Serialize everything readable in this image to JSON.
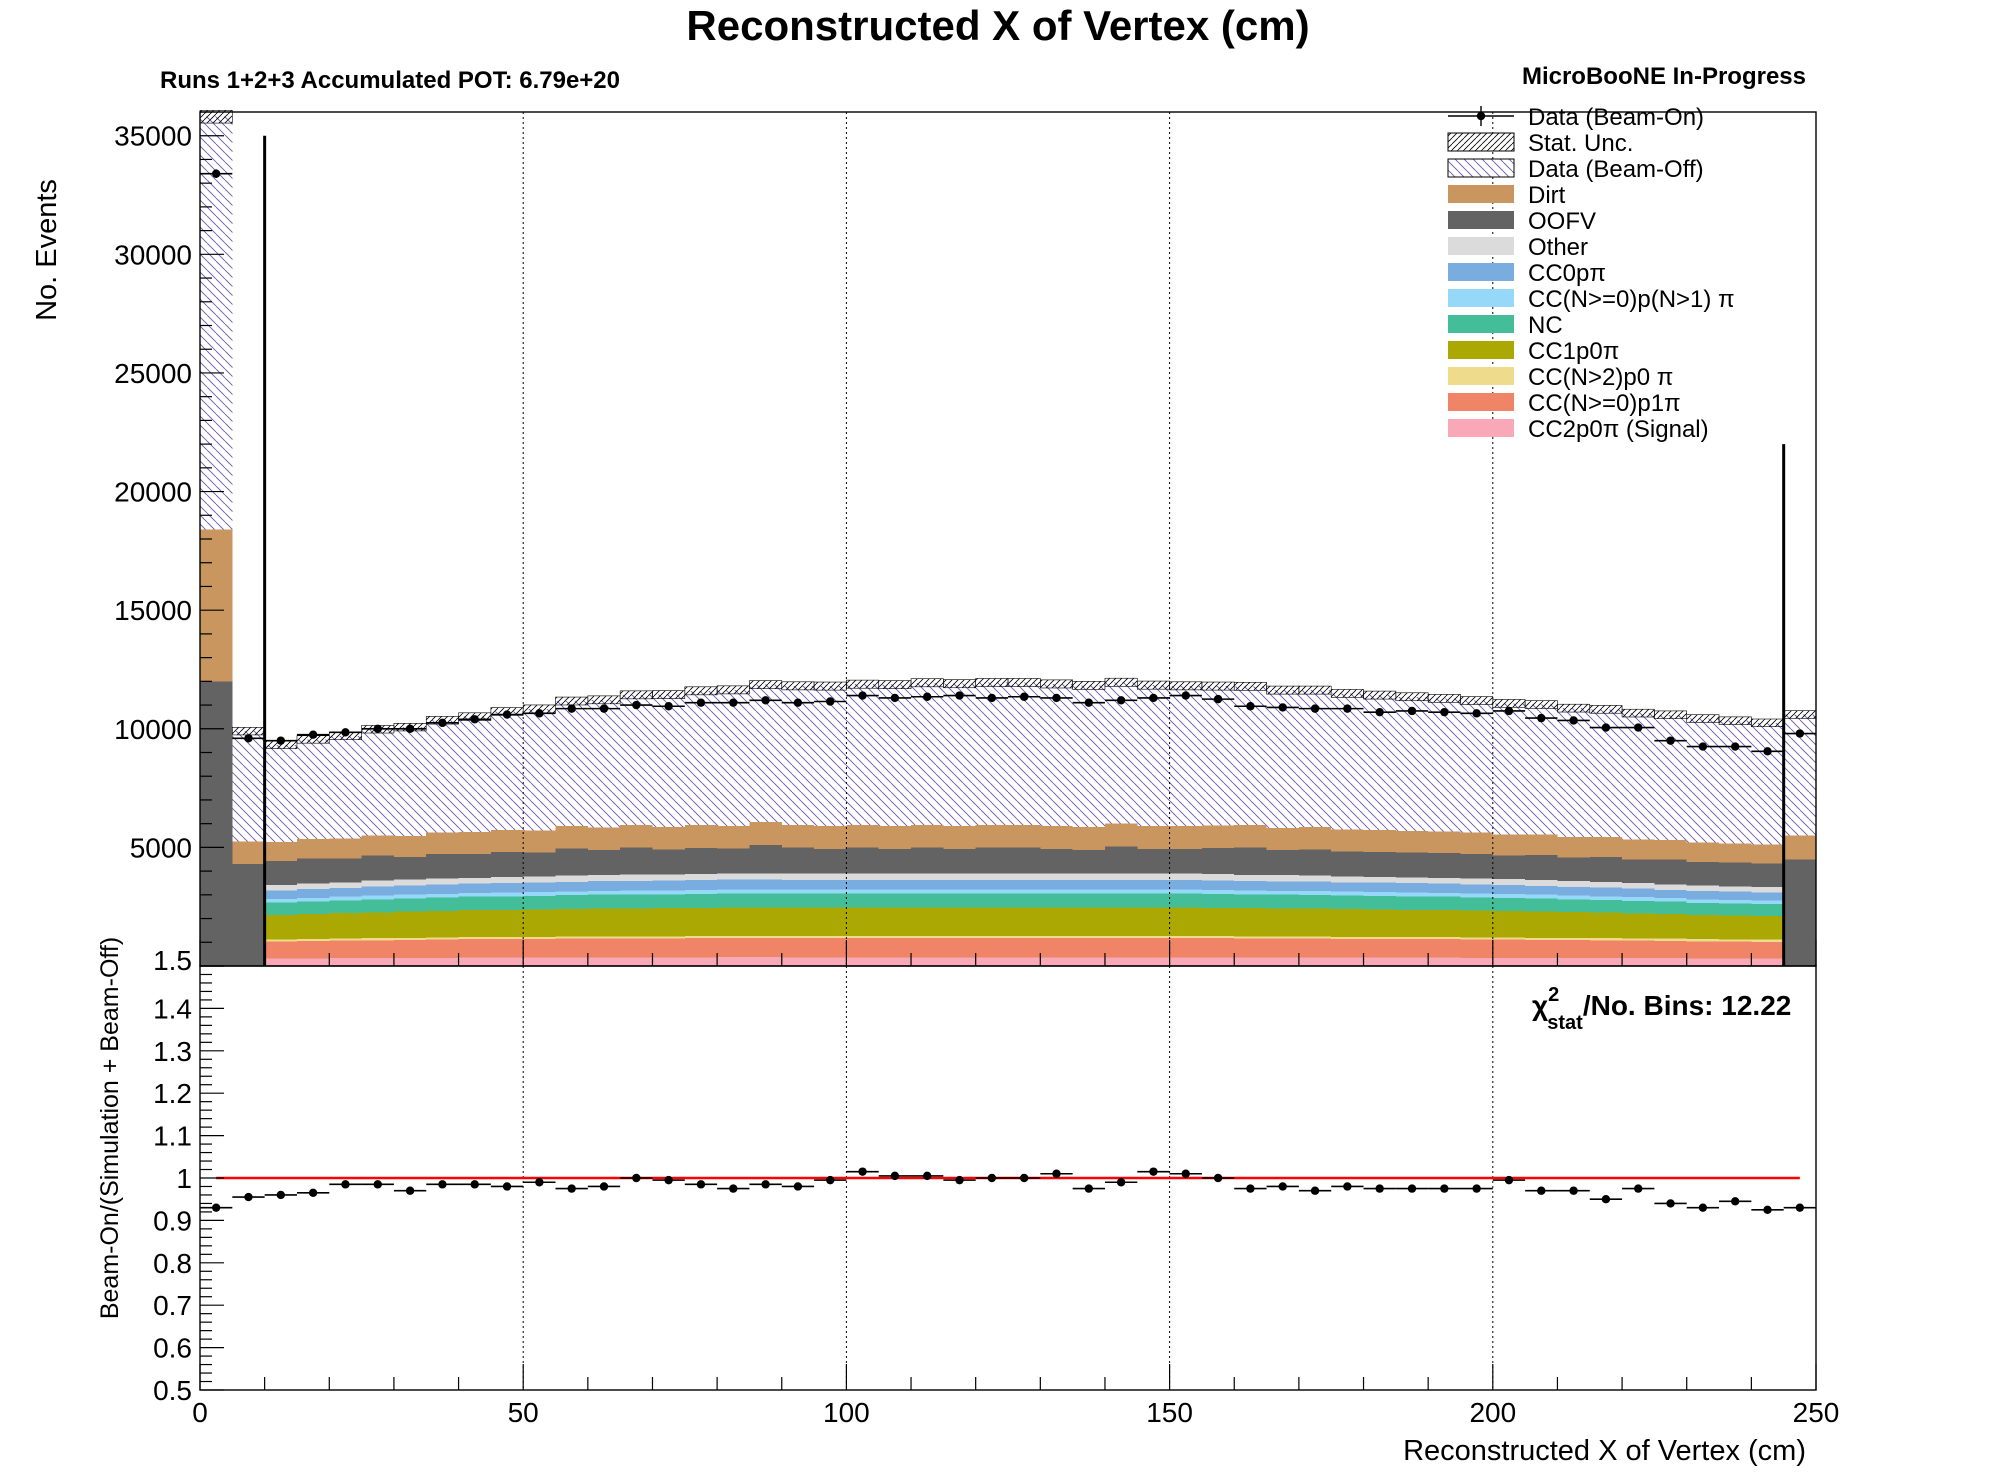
{
  "chart_data": {
    "type": "bar",
    "title": "Reconstructed X of Vertex (cm)",
    "subtitle_left": "Runs 1+2+3 Accumulated POT: 6.79e+20",
    "subtitle_right": "MicroBooNE In-Progress",
    "xlabel": "Reconstructed X of Vertex (cm)",
    "ylabel": "No. Events",
    "ratio_ylabel": "Beam-On/(Simulation + Beam-Off)",
    "xlim": [
      0,
      250
    ],
    "ylim": [
      0,
      36000
    ],
    "ratio_ylim": [
      0.5,
      1.5
    ],
    "x_ticks": [
      "0",
      "50",
      "100",
      "150",
      "200",
      "250"
    ],
    "y_ticks": [
      "5000",
      "10000",
      "15000",
      "20000",
      "25000",
      "30000",
      "35000"
    ],
    "ratio_ticks": [
      "0.5",
      "0.6",
      "0.7",
      "0.8",
      "0.9",
      "1",
      "1.1",
      "1.2",
      "1.3",
      "1.4"
    ],
    "ratio_top_tick": "1.5",
    "chi2_label": {
      "chi": "χ",
      "sup": "2",
      "sub": "stat",
      "rest": "/No. Bins: 12.22"
    },
    "bin_width": 5,
    "cut_lines": [
      {
        "x": 10,
        "y": 35000
      },
      {
        "x": 245,
        "y": 22000
      }
    ],
    "grid_x": [
      50,
      100,
      150,
      200
    ],
    "legend_position": "top-right",
    "legend": [
      {
        "label": "Data (Beam-On)",
        "style": "marker"
      },
      {
        "label": "Stat. Unc.",
        "style": "hatch-stat"
      },
      {
        "label": "Data (Beam-Off)",
        "style": "hatch-off"
      },
      {
        "label": "Dirt",
        "style": "fill",
        "color": "#C8965E"
      },
      {
        "label": "OOFV",
        "style": "fill",
        "color": "#636363"
      },
      {
        "label": "Other",
        "style": "fill",
        "color": "#DBDBDB"
      },
      {
        "label": "CC0pπ",
        "style": "fill",
        "color": "#79ACDF"
      },
      {
        "label": "CC(N>=0)p(N>1) π",
        "style": "fill",
        "color": "#96D8F8"
      },
      {
        "label": "NC",
        "style": "fill",
        "color": "#43BE98"
      },
      {
        "label": "CC1p0π",
        "style": "fill",
        "color": "#ABA803"
      },
      {
        "label": "CC(N>2)p0 π",
        "style": "fill",
        "color": "#EEDB8C"
      },
      {
        "label": "CC(N>=0)p1π",
        "style": "fill",
        "color": "#EF8566"
      },
      {
        "label": "CC2p0π (Signal)",
        "style": "fill",
        "color": "#F8A8B7"
      }
    ],
    "bins_x": [
      0,
      5,
      10,
      15,
      20,
      25,
      30,
      35,
      40,
      45,
      50,
      55,
      60,
      65,
      70,
      75,
      80,
      85,
      90,
      95,
      100,
      105,
      110,
      115,
      120,
      125,
      130,
      135,
      140,
      145,
      150,
      155,
      160,
      165,
      170,
      175,
      180,
      185,
      190,
      195,
      200,
      205,
      210,
      215,
      220,
      225,
      230,
      235,
      240,
      245
    ],
    "series": [
      {
        "name": "CC2p0π (Signal)",
        "color": "#F8A8B7",
        "values": [
          0,
          0,
          310,
          320,
          330,
          330,
          340,
          340,
          350,
          350,
          350,
          360,
          360,
          360,
          360,
          360,
          370,
          370,
          360,
          360,
          360,
          360,
          360,
          360,
          360,
          360,
          360,
          360,
          360,
          360,
          360,
          360,
          360,
          360,
          350,
          350,
          350,
          350,
          350,
          340,
          340,
          340,
          340,
          330,
          330,
          330,
          320,
          320,
          320,
          0
        ]
      },
      {
        "name": "CC(N>=0)p1π",
        "color": "#EF8566",
        "values": [
          0,
          0,
          720,
          730,
          740,
          750,
          760,
          770,
          780,
          780,
          790,
          790,
          800,
          800,
          800,
          810,
          810,
          810,
          810,
          810,
          810,
          810,
          810,
          810,
          810,
          810,
          810,
          810,
          810,
          810,
          810,
          810,
          800,
          800,
          800,
          790,
          790,
          780,
          780,
          770,
          770,
          760,
          750,
          750,
          740,
          730,
          720,
          710,
          700,
          0
        ]
      },
      {
        "name": "CC(N>2)p0 π",
        "color": "#EEDB8C",
        "values": [
          0,
          0,
          90,
          90,
          90,
          90,
          90,
          90,
          90,
          90,
          90,
          90,
          90,
          90,
          90,
          90,
          90,
          90,
          90,
          90,
          90,
          90,
          90,
          90,
          90,
          90,
          90,
          90,
          90,
          90,
          90,
          90,
          90,
          90,
          90,
          90,
          90,
          90,
          90,
          90,
          90,
          90,
          90,
          90,
          90,
          90,
          90,
          90,
          90,
          0
        ]
      },
      {
        "name": "CC1p0π",
        "color": "#ABA803",
        "values": [
          0,
          0,
          1030,
          1050,
          1070,
          1090,
          1110,
          1120,
          1140,
          1150,
          1160,
          1170,
          1180,
          1180,
          1190,
          1190,
          1200,
          1200,
          1200,
          1200,
          1200,
          1200,
          1200,
          1200,
          1200,
          1200,
          1200,
          1200,
          1200,
          1200,
          1200,
          1190,
          1190,
          1180,
          1180,
          1170,
          1160,
          1150,
          1140,
          1130,
          1120,
          1110,
          1090,
          1080,
          1060,
          1040,
          1020,
          1010,
          1000,
          0
        ]
      },
      {
        "name": "NC",
        "color": "#43BE98",
        "values": [
          0,
          0,
          520,
          530,
          540,
          550,
          550,
          560,
          560,
          570,
          570,
          580,
          580,
          580,
          580,
          590,
          590,
          590,
          590,
          590,
          590,
          590,
          590,
          590,
          590,
          590,
          590,
          590,
          590,
          590,
          590,
          580,
          580,
          580,
          580,
          570,
          570,
          570,
          560,
          560,
          550,
          550,
          540,
          540,
          530,
          520,
          510,
          510,
          500,
          0
        ]
      },
      {
        "name": "CC(N>=0)p(N>1) π",
        "color": "#96D8F8",
        "values": [
          0,
          0,
          150,
          150,
          150,
          160,
          160,
          160,
          160,
          160,
          160,
          160,
          160,
          170,
          170,
          170,
          170,
          170,
          170,
          170,
          170,
          170,
          170,
          170,
          170,
          170,
          170,
          170,
          170,
          170,
          170,
          170,
          160,
          160,
          160,
          160,
          160,
          160,
          160,
          160,
          160,
          160,
          160,
          150,
          150,
          150,
          150,
          150,
          150,
          0
        ]
      },
      {
        "name": "CC0pπ",
        "color": "#79ACDF",
        "values": [
          0,
          0,
          360,
          370,
          370,
          380,
          380,
          390,
          390,
          400,
          400,
          400,
          410,
          410,
          410,
          410,
          410,
          410,
          410,
          410,
          410,
          410,
          410,
          410,
          410,
          410,
          410,
          410,
          410,
          410,
          410,
          410,
          400,
          400,
          400,
          400,
          390,
          390,
          390,
          380,
          380,
          370,
          370,
          360,
          360,
          350,
          350,
          340,
          340,
          0
        ]
      },
      {
        "name": "Other",
        "color": "#DBDBDB",
        "values": [
          0,
          0,
          240,
          240,
          240,
          250,
          250,
          250,
          250,
          260,
          260,
          260,
          260,
          260,
          260,
          260,
          260,
          260,
          260,
          260,
          260,
          260,
          260,
          260,
          260,
          260,
          260,
          260,
          260,
          260,
          260,
          260,
          260,
          260,
          260,
          250,
          250,
          250,
          250,
          250,
          250,
          240,
          240,
          240,
          240,
          230,
          230,
          230,
          230,
          0
        ]
      },
      {
        "name": "OOFV",
        "color": "#636363",
        "values": [
          12000,
          4300,
          1000,
          1050,
          1000,
          1050,
          950,
          1050,
          1000,
          1050,
          1000,
          1150,
          1050,
          1150,
          1050,
          1100,
          1050,
          1200,
          1100,
          1050,
          1100,
          1050,
          1100,
          1050,
          1100,
          1100,
          1050,
          1000,
          1150,
          1050,
          1050,
          1100,
          1150,
          1050,
          1100,
          1050,
          1050,
          1050,
          1050,
          1050,
          1000,
          1050,
          1000,
          1050,
          1000,
          1050,
          1000,
          1000,
          1000,
          4500
        ]
      },
      {
        "name": "Dirt",
        "color": "#C8965E",
        "values": [
          6400,
          950,
          800,
          820,
          840,
          860,
          880,
          900,
          920,
          920,
          930,
          940,
          950,
          950,
          960,
          960,
          960,
          960,
          960,
          960,
          960,
          960,
          960,
          960,
          960,
          960,
          960,
          960,
          960,
          960,
          960,
          950,
          950,
          940,
          940,
          930,
          920,
          910,
          900,
          890,
          880,
          870,
          860,
          850,
          840,
          830,
          820,
          810,
          800,
          1000
        ]
      },
      {
        "name": "Data (Beam-Off)",
        "color": "#7058B0",
        "values": [
          17400,
          4650,
          4100,
          4200,
          4330,
          4470,
          4600,
          4730,
          4870,
          5000,
          5130,
          5270,
          5380,
          5480,
          5570,
          5660,
          5730,
          5800,
          5860,
          5900,
          5930,
          5960,
          5990,
          6000,
          6000,
          6000,
          5990,
          5980,
          5960,
          5940,
          5910,
          5880,
          5850,
          5810,
          5770,
          5730,
          5690,
          5650,
          5610,
          5570,
          5530,
          5480,
          5430,
          5380,
          5320,
          5270,
          5220,
          5170,
          5120,
          5100
        ]
      }
    ],
    "data_beam_on": [
      33400,
      9600,
      9500,
      9750,
      9850,
      10000,
      10000,
      10250,
      10400,
      10600,
      10650,
      10850,
      10850,
      11000,
      10950,
      11100,
      11100,
      11200,
      11100,
      11150,
      11400,
      11300,
      11350,
      11400,
      11300,
      11350,
      11300,
      11100,
      11200,
      11300,
      11400,
      11250,
      10950,
      10900,
      10850,
      10850,
      10700,
      10750,
      10700,
      10650,
      10750,
      10450,
      10350,
      10050,
      10050,
      9500,
      9250,
      9250,
      9050,
      9800
    ],
    "ratio_values": [
      0.93,
      0.955,
      0.96,
      0.965,
      0.985,
      0.985,
      0.97,
      0.985,
      0.985,
      0.98,
      0.99,
      0.975,
      0.98,
      1.0,
      0.995,
      0.985,
      0.975,
      0.985,
      0.98,
      0.995,
      1.015,
      1.005,
      1.005,
      0.995,
      1.0,
      1.0,
      1.01,
      0.975,
      0.99,
      1.015,
      1.01,
      1.0,
      0.975,
      0.98,
      0.97,
      0.98,
      0.975,
      0.975,
      0.975,
      0.975,
      0.995,
      0.97,
      0.97,
      0.95,
      0.975,
      0.94,
      0.93,
      0.945,
      0.925,
      0.93
    ]
  }
}
